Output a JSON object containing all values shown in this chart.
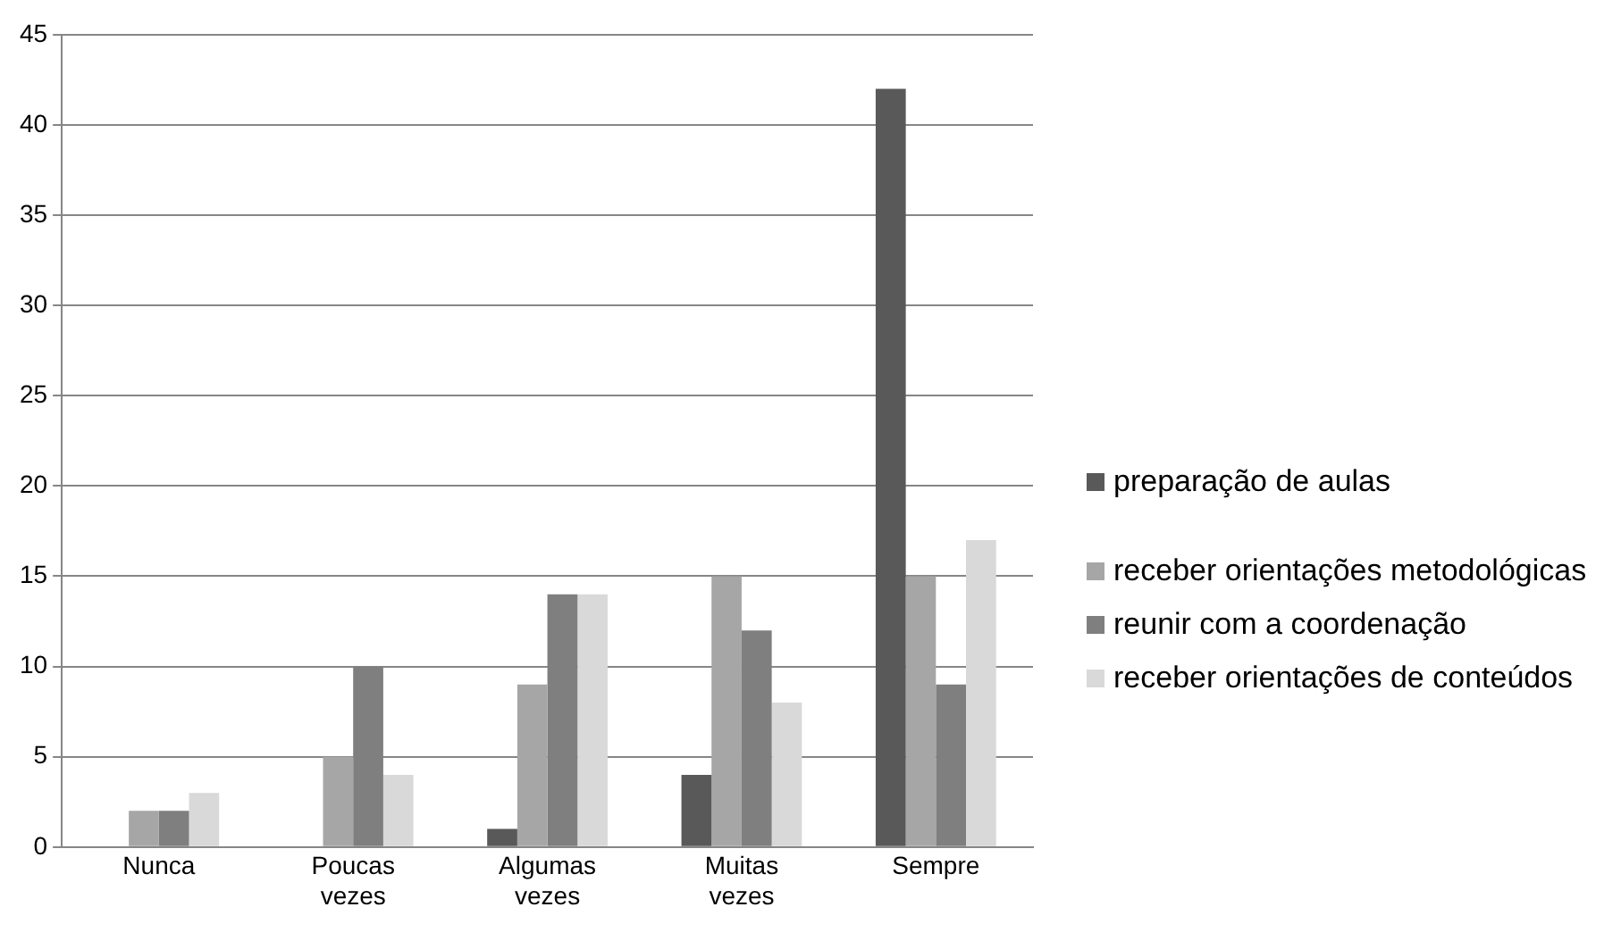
{
  "chart_data": {
    "type": "bar",
    "categories": [
      "Nunca",
      "Poucas vezes",
      "Algumas vezes",
      "Muitas vezes",
      "Sempre"
    ],
    "series": [
      {
        "name": "preparação de aulas",
        "color": "#595959",
        "values": [
          0,
          0,
          1,
          4,
          42
        ]
      },
      {
        "name": "receber orientações metodológicas",
        "color": "#a6a6a6",
        "values": [
          2,
          5,
          9,
          15,
          15
        ]
      },
      {
        "name": "reunir com a coordenação",
        "color": "#7f7f7f",
        "values": [
          2,
          10,
          14,
          12,
          9
        ]
      },
      {
        "name": "receber orientações de conteúdos",
        "color": "#d9d9d9",
        "values": [
          3,
          4,
          14,
          8,
          17
        ]
      }
    ],
    "ylim": [
      0,
      45
    ],
    "yticks": [
      0,
      5,
      10,
      15,
      20,
      25,
      30,
      35,
      40,
      45
    ],
    "grid": "y",
    "legend": "right"
  }
}
